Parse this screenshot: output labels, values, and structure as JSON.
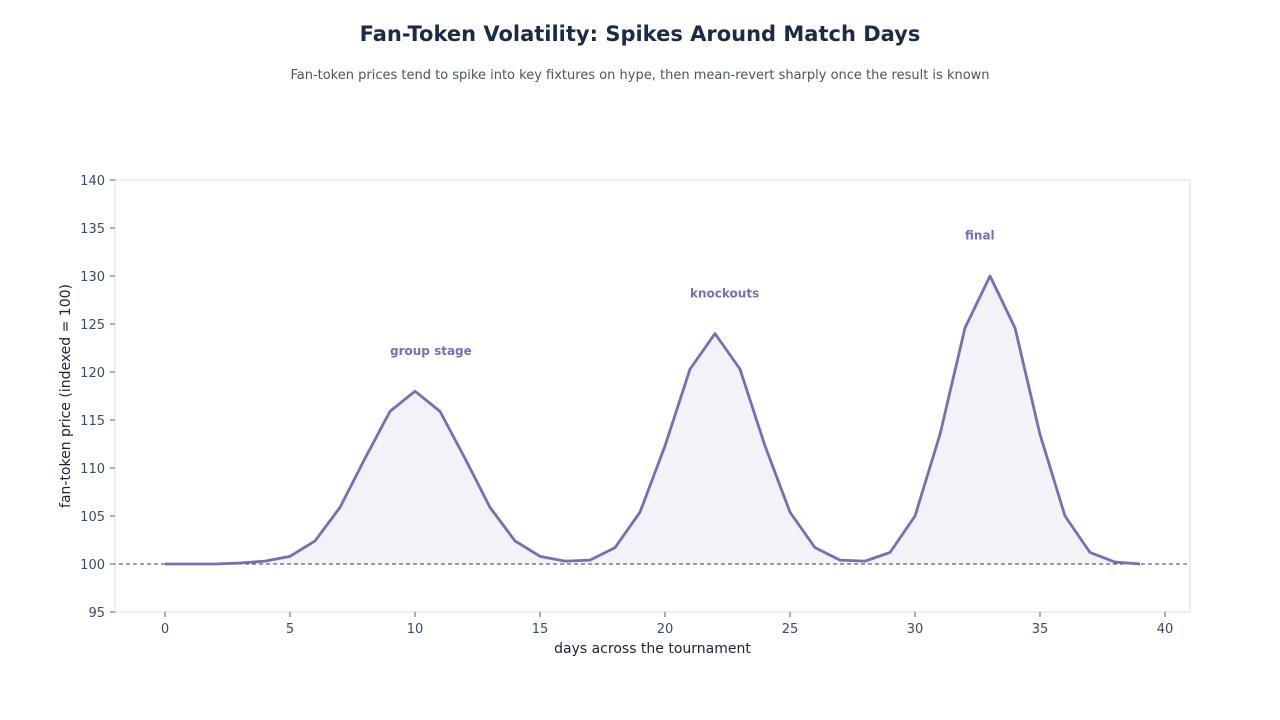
{
  "title": "Fan-Token Volatility: Spikes Around Match Days",
  "subtitle": "Fan-token prices tend to spike into key fixtures on hype, then mean-revert sharply once the result is known",
  "colors": {
    "line": "#7b6cb5",
    "fill": "#f3f2f9",
    "baseline": "#3b3b5c",
    "frame": "#d9dde5"
  },
  "chart_data": {
    "type": "area",
    "xlabel": "days across the tournament",
    "ylabel": "fan-token price (indexed = 100)",
    "xlim": [
      -2,
      41
    ],
    "ylim": [
      95,
      140
    ],
    "xticks": [
      0,
      5,
      10,
      15,
      20,
      25,
      30,
      35,
      40
    ],
    "yticks": [
      95,
      100,
      105,
      110,
      115,
      120,
      125,
      130,
      135,
      140
    ],
    "grid": false,
    "reference_line": {
      "y": 100,
      "style": "dashed"
    },
    "series": [
      {
        "x": [
          0,
          1,
          2,
          3,
          4,
          5,
          6,
          7,
          8,
          9,
          10,
          11,
          12,
          13,
          14,
          15,
          16,
          17,
          18,
          19,
          20,
          21,
          22,
          23,
          24,
          25,
          26,
          27,
          28,
          29,
          30,
          31,
          32,
          33,
          34,
          35,
          36,
          37,
          38,
          39
        ],
        "values": [
          100,
          100,
          100,
          100.1,
          100.3,
          100.8,
          102.4,
          105.9,
          111.0,
          115.9,
          118.0,
          115.9,
          111.0,
          105.9,
          102.4,
          100.8,
          100.3,
          100.4,
          101.7,
          105.4,
          112.3,
          120.3,
          124.0,
          120.3,
          112.3,
          105.4,
          101.7,
          100.4,
          100.3,
          101.2,
          105.0,
          113.5,
          124.6,
          130.0,
          124.6,
          113.5,
          105.0,
          101.2,
          100.2,
          100.0
        ]
      }
    ],
    "annotations": [
      {
        "text": "group stage",
        "x": 9,
        "y": 122.2
      },
      {
        "text": "knockouts",
        "x": 21,
        "y": 128.2
      },
      {
        "text": "final",
        "x": 32,
        "y": 134.2
      }
    ]
  }
}
